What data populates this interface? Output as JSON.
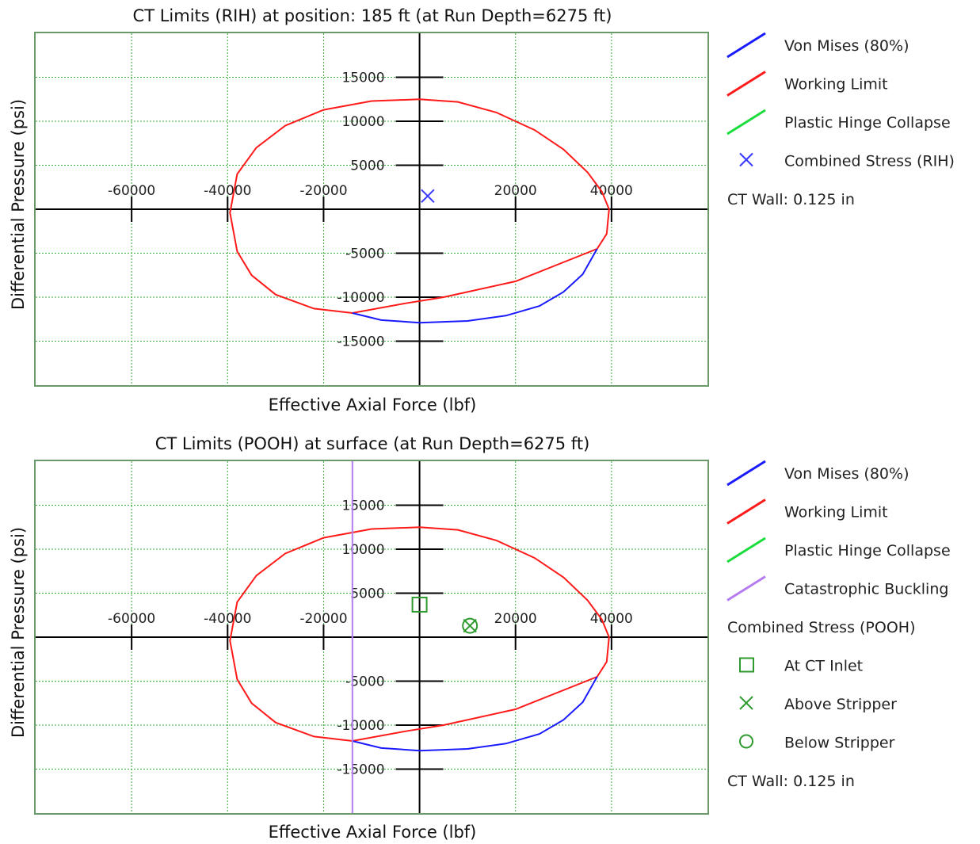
{
  "charts_colors": {
    "von_mises": "#1a1aff",
    "working_limit": "#ff1a1a",
    "plastic_hinge": "#1adc3c",
    "catastrophic_buckling": "#b57cf0",
    "marker_rih": "#3a3aff",
    "marker_pooh": "#2e9a2e",
    "grid": "#3aab3a",
    "frame": "#6a9a6a",
    "axis": "#000000"
  },
  "chart_data": [
    {
      "type": "line",
      "title": "CT Limits (RIH) at position: 185 ft (at Run Depth=6275 ft)",
      "xlabel": "Effective Axial Force (lbf)",
      "ylabel": "Differential Pressure (psi)",
      "xlim": [
        -80000,
        60000
      ],
      "ylim": [
        -20000,
        20000
      ],
      "x_ticks": [
        -60000,
        -40000,
        -20000,
        20000,
        40000
      ],
      "x_tick_labels": [
        "-60000",
        "-40000",
        "-20000",
        "20000",
        "40000"
      ],
      "y_ticks": [
        15000,
        10000,
        5000,
        -5000,
        -10000,
        -15000
      ],
      "y_tick_labels": [
        "15000",
        "10000",
        "5000",
        "-5000",
        "-10000",
        "-15000"
      ],
      "grid": true,
      "legend_position": "right",
      "legend": [
        {
          "label": "Von Mises (80%)",
          "symbol": "line",
          "color": "#1a1aff"
        },
        {
          "label": "Working Limit",
          "symbol": "line",
          "color": "#ff1a1a"
        },
        {
          "label": "Plastic Hinge Collapse",
          "symbol": "line",
          "color": "#1adc3c"
        },
        {
          "label": "Combined Stress (RIH)",
          "symbol": "x",
          "color": "#3a3aff"
        }
      ],
      "note": "CT Wall: 0.125 in",
      "series": [
        {
          "name": "Working Limit",
          "color": "#ff1a1a",
          "x": [
            0,
            8000,
            16000,
            24000,
            30000,
            35000,
            38000,
            39500,
            39000,
            37000,
            20000,
            5000,
            -3000,
            -14000,
            -22000,
            -30000,
            -35000,
            -38000,
            -39500,
            -38000,
            -34000,
            -28000,
            -20000,
            -10000,
            0
          ],
          "y": [
            12500,
            12200,
            11000,
            9000,
            6800,
            4200,
            2000,
            0,
            -2800,
            -4500,
            -8200,
            -10000,
            -10700,
            -11800,
            -11300,
            -9700,
            -7500,
            -4800,
            -400,
            4000,
            7000,
            9500,
            11300,
            12300,
            12500
          ]
        },
        {
          "name": "Von Mises (80%)",
          "color": "#1a1aff",
          "x": [
            37000,
            34000,
            30000,
            25000,
            18000,
            10000,
            0,
            -8000,
            -14000
          ],
          "y": [
            -4500,
            -7400,
            -9400,
            -11000,
            -12100,
            -12700,
            -12900,
            -12600,
            -11800
          ]
        }
      ],
      "points": [
        {
          "name": "Combined Stress (RIH)",
          "marker": "x",
          "x": 1700,
          "y": 1500
        }
      ]
    },
    {
      "type": "line",
      "title": "CT Limits (POOH) at surface (at Run Depth=6275 ft)",
      "xlabel": "Effective Axial Force (lbf)",
      "ylabel": "Differential Pressure (psi)",
      "xlim": [
        -80000,
        60000
      ],
      "ylim": [
        -20000,
        20000
      ],
      "x_ticks": [
        -60000,
        -40000,
        -20000,
        20000,
        40000
      ],
      "x_tick_labels": [
        "-60000",
        "-40000",
        "-20000",
        "20000",
        "40000"
      ],
      "y_ticks": [
        15000,
        10000,
        5000,
        -5000,
        -10000,
        -15000
      ],
      "y_tick_labels": [
        "15000",
        "10000",
        "5000",
        "-5000",
        "-10000",
        "-15000"
      ],
      "grid": true,
      "legend_position": "right",
      "legend": [
        {
          "label": "Von Mises (80%)",
          "symbol": "line",
          "color": "#1a1aff"
        },
        {
          "label": "Working Limit",
          "symbol": "line",
          "color": "#ff1a1a"
        },
        {
          "label": "Plastic Hinge Collapse",
          "symbol": "line",
          "color": "#1adc3c"
        },
        {
          "label": "Catastrophic Buckling",
          "symbol": "line",
          "color": "#b57cf0"
        },
        {
          "label": "Combined Stress (POOH)",
          "symbol": "none",
          "color": "#000000"
        },
        {
          "label": "At CT Inlet",
          "symbol": "square",
          "color": "#2e9a2e"
        },
        {
          "label": "Above Stripper",
          "symbol": "x",
          "color": "#2e9a2e"
        },
        {
          "label": "Below Stripper",
          "symbol": "circle",
          "color": "#2e9a2e"
        }
      ],
      "note": "CT Wall: 0.125 in",
      "series": [
        {
          "name": "Working Limit",
          "color": "#ff1a1a",
          "x": [
            0,
            8000,
            16000,
            24000,
            30000,
            35000,
            38000,
            39500,
            39000,
            37000,
            20000,
            5000,
            -3000,
            -14000,
            -22000,
            -30000,
            -35000,
            -38000,
            -39500,
            -38000,
            -34000,
            -28000,
            -20000,
            -10000,
            0
          ],
          "y": [
            12500,
            12200,
            11000,
            9000,
            6800,
            4200,
            2000,
            0,
            -2800,
            -4500,
            -8200,
            -10000,
            -10700,
            -11800,
            -11300,
            -9700,
            -7500,
            -4800,
            -400,
            4000,
            7000,
            9500,
            11300,
            12300,
            12500
          ]
        },
        {
          "name": "Von Mises (80%)",
          "color": "#1a1aff",
          "x": [
            37000,
            34000,
            30000,
            25000,
            18000,
            10000,
            0,
            -8000,
            -14000
          ],
          "y": [
            -4500,
            -7400,
            -9400,
            -11000,
            -12100,
            -12700,
            -12900,
            -12600,
            -11800
          ]
        },
        {
          "name": "Catastrophic Buckling",
          "color": "#b57cf0",
          "x": [
            -14000,
            -14000
          ],
          "y": [
            -20000,
            20000
          ]
        }
      ],
      "points": [
        {
          "name": "At CT Inlet",
          "marker": "square",
          "x": 0,
          "y": 3700
        },
        {
          "name": "Above Stripper",
          "marker": "x",
          "x": 10500,
          "y": 1300
        },
        {
          "name": "Below Stripper",
          "marker": "circle",
          "x": 10500,
          "y": 1300
        }
      ]
    }
  ]
}
